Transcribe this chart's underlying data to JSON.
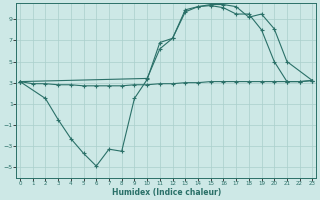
{
  "xlabel": "Humidex (Indice chaleur)",
  "bg_color": "#cde8e6",
  "line_color": "#2a7068",
  "grid_color": "#aacfcc",
  "xlim": [
    -0.3,
    23.3
  ],
  "ylim": [
    -6,
    10.5
  ],
  "yticks": [
    -5,
    -3,
    -1,
    1,
    3,
    5,
    7,
    9
  ],
  "xticks": [
    0,
    1,
    2,
    3,
    4,
    5,
    6,
    7,
    8,
    9,
    10,
    11,
    12,
    13,
    14,
    15,
    16,
    17,
    18,
    19,
    20,
    21,
    22,
    23
  ],
  "line_a_x": [
    0,
    1,
    2,
    3,
    4,
    5,
    6,
    7,
    8,
    9,
    10,
    11,
    12,
    13,
    14,
    15,
    16,
    17,
    18,
    19,
    20,
    21,
    22,
    23
  ],
  "line_a_y": [
    3.1,
    2.9,
    2.9,
    2.8,
    2.8,
    2.7,
    2.7,
    2.7,
    2.7,
    2.8,
    2.8,
    2.9,
    2.9,
    3.0,
    3.0,
    3.1,
    3.1,
    3.1,
    3.1,
    3.1,
    3.1,
    3.1,
    3.1,
    3.2
  ],
  "line_b_x": [
    0,
    2,
    3,
    4,
    5,
    6,
    7,
    8,
    9,
    10,
    11,
    12,
    13,
    14,
    15,
    16,
    17,
    18,
    19,
    20,
    21,
    22,
    23
  ],
  "line_b_y": [
    3.1,
    1.5,
    -0.5,
    -2.3,
    -3.7,
    -4.9,
    -3.3,
    -3.5,
    1.5,
    3.3,
    6.8,
    7.2,
    9.9,
    10.2,
    10.3,
    10.1,
    9.5,
    9.5,
    8.0,
    5.0,
    3.1,
    3.1,
    3.2
  ],
  "line_c_x": [
    0,
    10,
    11,
    12,
    13,
    14,
    15,
    16,
    17,
    18,
    19,
    20,
    21,
    23
  ],
  "line_c_y": [
    3.1,
    3.4,
    6.2,
    7.2,
    9.7,
    10.2,
    10.4,
    10.4,
    10.2,
    9.2,
    9.5,
    8.1,
    5.0,
    3.2
  ]
}
